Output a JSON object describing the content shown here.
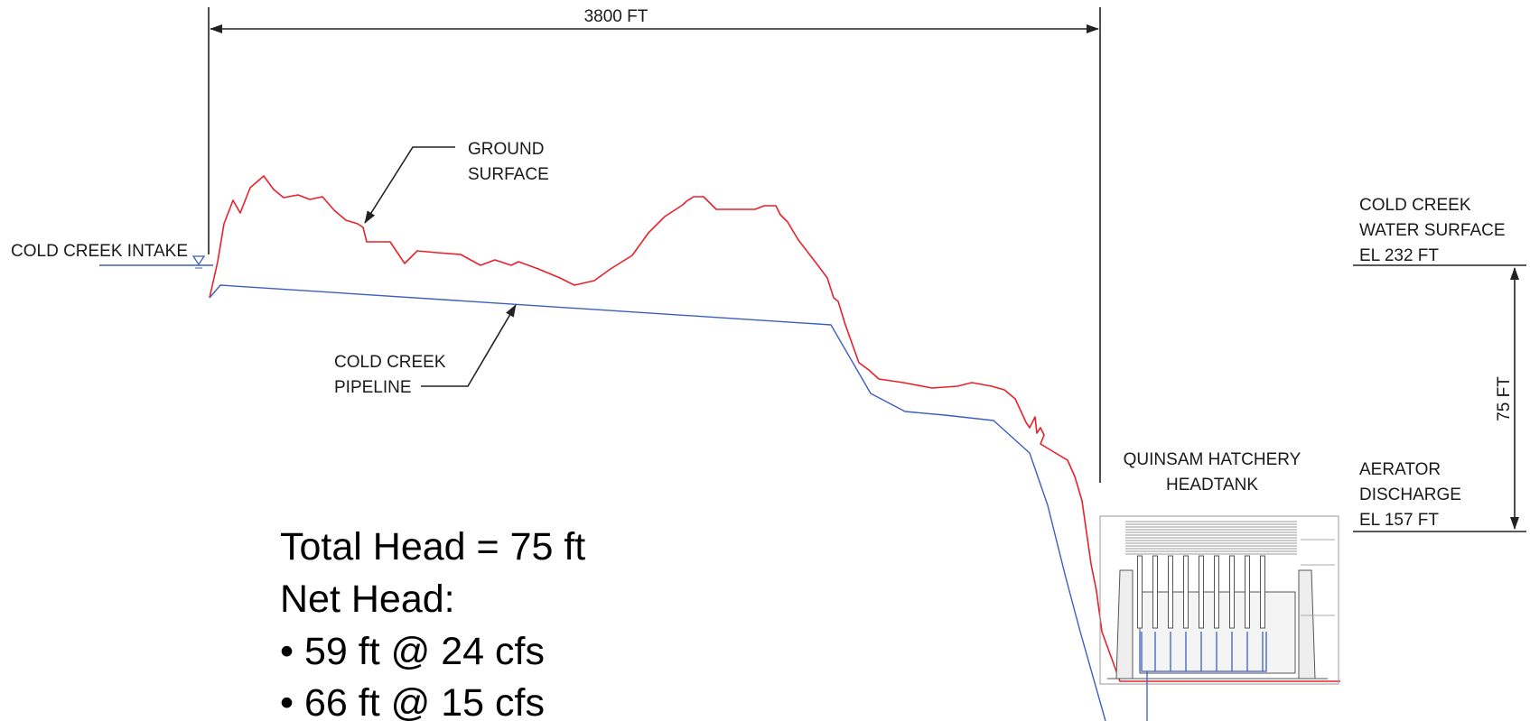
{
  "dimensions": {
    "length_label": "3800 FT",
    "head_label": "75 FT"
  },
  "labels": {
    "intake": "COLD CREEK INTAKE",
    "ground_line1": "GROUND",
    "ground_line2": "SURFACE",
    "pipeline_line1": "COLD CREEK",
    "pipeline_line2": "PIPELINE",
    "water_line1": "COLD CREEK",
    "water_line2": "WATER SURFACE",
    "water_line3": "EL 232 FT",
    "aerator_line1": "AERATOR",
    "aerator_line2": "DISCHARGE",
    "aerator_line3": "EL 157 FT",
    "hatchery_line1": "QUINSAM HATCHERY",
    "hatchery_line2": "HEADTANK"
  },
  "summary": {
    "total_head": "Total Head = 75 ft",
    "net_head_title": "Net Head:",
    "bullet_1": "• 59 ft  @  24 cfs",
    "bullet_2": "• 66 ft  @  15 cfs"
  },
  "colors": {
    "ground": "#e8212b",
    "pipeline": "#3b5fc0",
    "dimension": "#222222",
    "drawing": "#555555"
  }
}
